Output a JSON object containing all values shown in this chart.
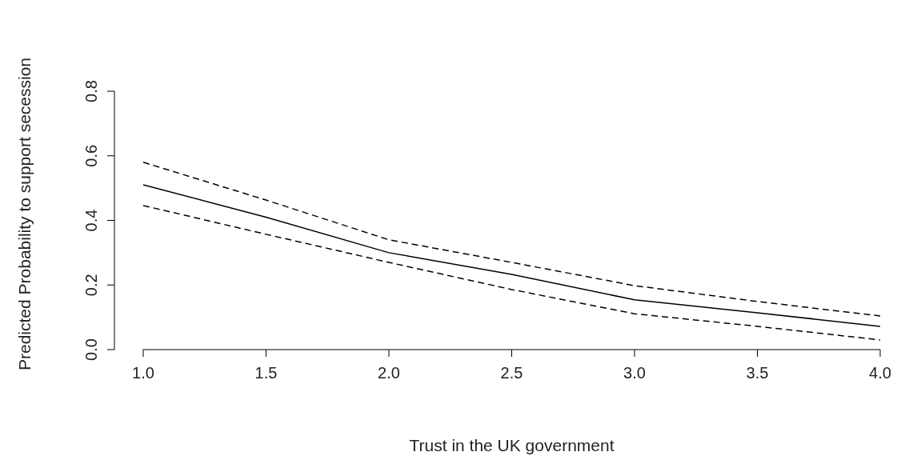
{
  "chart_data": {
    "type": "line",
    "xlabel": "Trust in the UK government",
    "ylabel": "Predicted Probability to support secession",
    "x": [
      1.0,
      1.5,
      2.0,
      2.5,
      3.0,
      3.5,
      4.0
    ],
    "series": [
      {
        "color": "#000000",
        "line_style": "solid",
        "values": [
          0.51,
          0.41,
          0.3,
          0.233,
          0.154,
          0.114,
          0.072
        ]
      },
      {
        "color": "#000000",
        "line_style": "dashed",
        "values": [
          0.58,
          0.463,
          0.34,
          0.27,
          0.198,
          0.149,
          0.104
        ]
      },
      {
        "color": "#000000",
        "line_style": "dashed",
        "values": [
          0.446,
          0.357,
          0.27,
          0.186,
          0.111,
          0.072,
          0.03
        ]
      }
    ],
    "xlim": [
      1,
      4
    ],
    "ylim": [
      0,
      0.8
    ],
    "xticks": [
      {
        "value": 1,
        "label": "1.0"
      },
      1.5,
      {
        "value": 2,
        "label": "2.0"
      },
      2.5,
      {
        "value": 3,
        "label": "3.0"
      },
      3.5,
      {
        "value": 4,
        "label": "4.0"
      }
    ],
    "yticks": [
      {
        "value": 0,
        "label": "0.0"
      },
      0.2,
      0.4,
      0.6,
      0.8
    ],
    "grid": false,
    "marker": "none"
  }
}
